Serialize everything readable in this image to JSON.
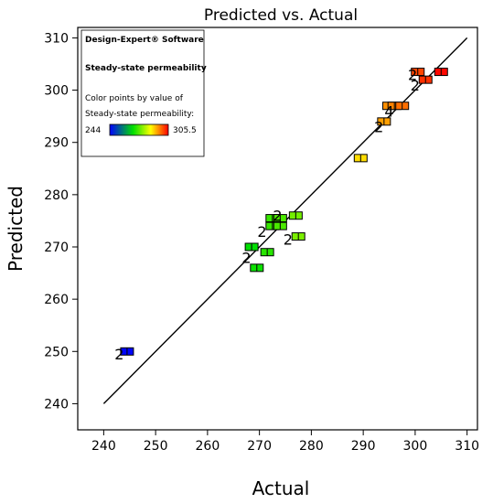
{
  "chart_data": {
    "type": "scatter",
    "title": "Predicted vs. Actual",
    "xlabel": "Actual",
    "ylabel": "Predicted",
    "xlim": [
      235,
      312
    ],
    "ylim": [
      235,
      312
    ],
    "xticks": [
      240,
      250,
      260,
      270,
      280,
      290,
      300,
      310
    ],
    "yticks": [
      240,
      250,
      260,
      270,
      280,
      290,
      300,
      310
    ],
    "grid": false,
    "reference_line": {
      "from": [
        240,
        240
      ],
      "to": [
        310,
        310
      ]
    },
    "legend": {
      "position": "top-left",
      "software": "Design-Expert® Software",
      "response": "Steady-state permeability",
      "color_caption_line1": "Color points by value of",
      "color_caption_line2": "Steady-state permeability:",
      "min_label": "244",
      "max_label": "305.5",
      "color_min": 244,
      "color_max": 305.5
    },
    "color_scale": [
      "#0000ff",
      "#00e000",
      "#ffff00",
      "#ff0000"
    ],
    "points": [
      {
        "x": 244.5,
        "y": 250,
        "v": 244.5
      },
      {
        "x": 268.5,
        "y": 270,
        "v": 268.5
      },
      {
        "x": 269.5,
        "y": 266,
        "v": 269.5
      },
      {
        "x": 271.5,
        "y": 269,
        "v": 271.5
      },
      {
        "x": 272.5,
        "y": 275.5,
        "v": 272.5
      },
      {
        "x": 272.5,
        "y": 274,
        "v": 272.5
      },
      {
        "x": 274,
        "y": 275.5,
        "v": 274
      },
      {
        "x": 274,
        "y": 274,
        "v": 274
      },
      {
        "x": 277,
        "y": 276,
        "v": 277
      },
      {
        "x": 277.5,
        "y": 272,
        "v": 277.5
      },
      {
        "x": 289.5,
        "y": 287,
        "v": 289.5
      },
      {
        "x": 294,
        "y": 294,
        "v": 294
      },
      {
        "x": 295,
        "y": 297,
        "v": 295
      },
      {
        "x": 296,
        "y": 297,
        "v": 296
      },
      {
        "x": 297.5,
        "y": 297,
        "v": 297.5
      },
      {
        "x": 300.5,
        "y": 303.5,
        "v": 300.5
      },
      {
        "x": 302,
        "y": 302,
        "v": 302
      },
      {
        "x": 305,
        "y": 303.5,
        "v": 305
      }
    ],
    "annotations": [
      {
        "text": "2",
        "x": 243,
        "y": 249.5
      },
      {
        "text": "2",
        "x": 267.5,
        "y": 268
      },
      {
        "text": "2",
        "x": 270.5,
        "y": 273
      },
      {
        "text": "2",
        "x": 273.5,
        "y": 276
      },
      {
        "text": "2",
        "x": 275.5,
        "y": 271.5
      },
      {
        "text": "2",
        "x": 293,
        "y": 293
      },
      {
        "text": "4",
        "x": 295,
        "y": 296
      },
      {
        "text": "2",
        "x": 299.5,
        "y": 303
      },
      {
        "text": "2",
        "x": 300,
        "y": 301
      }
    ]
  }
}
